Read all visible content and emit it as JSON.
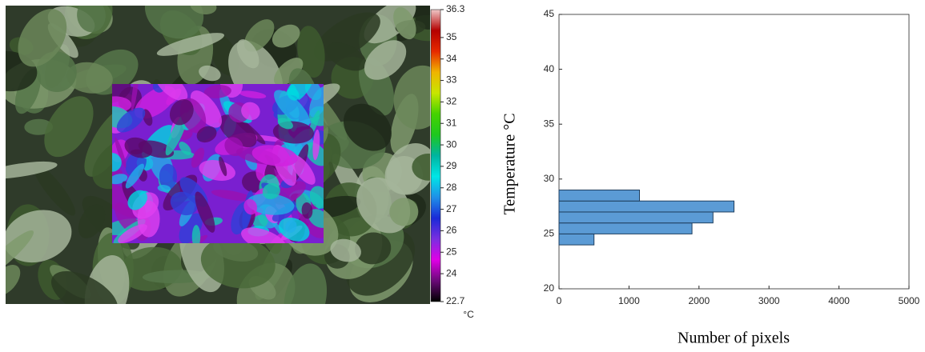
{
  "chart_data": [
    {
      "type": "colorbar",
      "label": "°C",
      "ylim": [
        22.7,
        36.3
      ],
      "yticks": [
        22.7,
        24,
        25,
        26,
        27,
        28,
        29,
        30,
        31,
        32,
        33,
        34,
        35,
        36.3
      ],
      "colors": [
        "#000000",
        "#6a0a78",
        "#e000e6",
        "#7a2ee0",
        "#1a2ad8",
        "#1e90e8",
        "#00e6e6",
        "#00b4a0",
        "#1ec81e",
        "#46d200",
        "#c8e600",
        "#f0b400",
        "#e62800",
        "#b40000",
        "#f0c8c8"
      ]
    },
    {
      "type": "histogram",
      "orientation": "horizontal",
      "xlabel": "Number of pixels",
      "ylabel": "Temperature °C",
      "bins": [
        24,
        25,
        26,
        27,
        28,
        29
      ],
      "values": [
        500,
        1900,
        2200,
        2500,
        1150
      ],
      "color": "#5b9bd5",
      "edgecolor": "#1f3f5f",
      "xlim": [
        0,
        5000
      ],
      "xticks": [
        0,
        1000,
        2000,
        3000,
        4000,
        5000
      ],
      "ylim": [
        20,
        45
      ],
      "yticks": [
        20,
        25,
        30,
        35,
        40,
        45
      ]
    }
  ]
}
